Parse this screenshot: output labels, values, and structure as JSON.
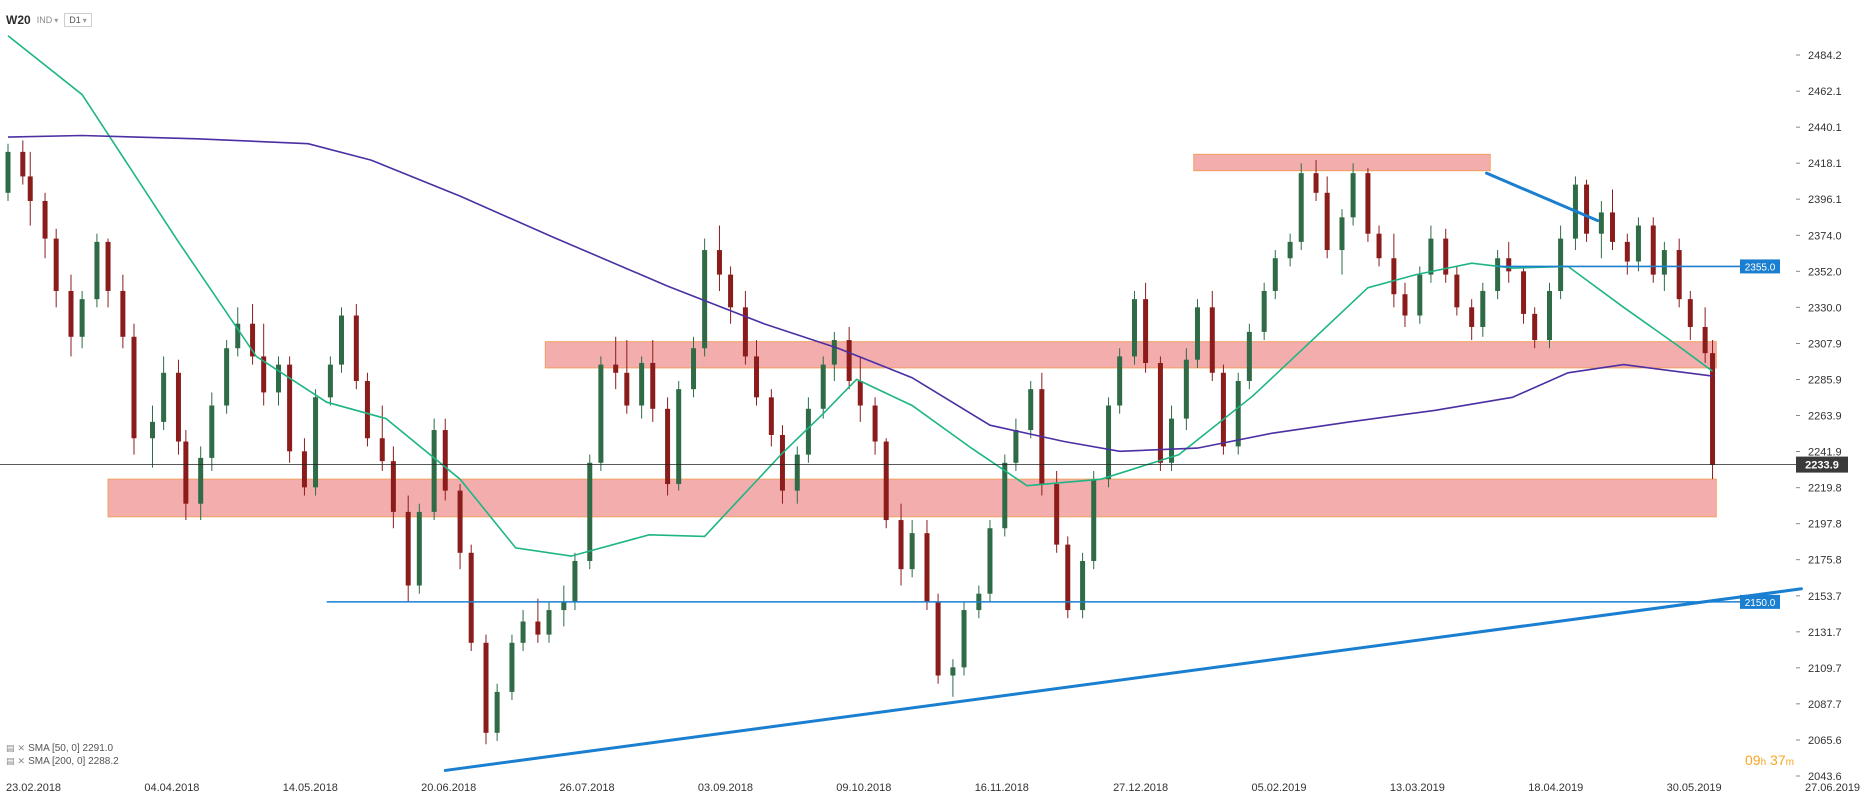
{
  "toolbar": {
    "symbol": "W20",
    "market": "IND",
    "timeframe": "D1"
  },
  "legend": [
    {
      "label": "SMA [50, 0] 2291.0"
    },
    {
      "label": "SMA [200, 0] 2288.2"
    }
  ],
  "timer": {
    "hours": "09",
    "h_unit": "h",
    "minutes": "37",
    "m_unit": "m"
  },
  "colors": {
    "bull": "#2e6b46",
    "bear": "#8b1c1c",
    "sma50": "#1db584",
    "sma200": "#4b2fa3",
    "trend": "#1a7fd0",
    "zone_fill": "#f08a8a",
    "zone_edge": "#f0a060",
    "price_line": "#222222"
  },
  "chart_data": {
    "type": "candlestick",
    "symbol": "W20",
    "timeframe": "D1",
    "x_axis_labels": [
      "23.02.2018",
      "04.04.2018",
      "14.05.2018",
      "20.06.2018",
      "26.07.2018",
      "03.09.2018",
      "09.10.2018",
      "16.11.2018",
      "27.12.2018",
      "05.02.2019",
      "13.03.2019",
      "18.04.2019",
      "30.05.2019",
      "27.06.2019"
    ],
    "x_range": [
      "2018-02-23",
      "2019-06-27"
    ],
    "y_axis_ticks": [
      "2484.2",
      "2462.1",
      "2440.1",
      "2418.1",
      "2396.1",
      "2374.0",
      "2352.0",
      "2330.0",
      "2307.9",
      "2285.9",
      "2263.9",
      "2241.9",
      "2219.8",
      "2197.8",
      "2175.8",
      "2153.7",
      "2131.7",
      "2109.7",
      "2087.7",
      "2065.6",
      "2043.6"
    ],
    "ylim": [
      2043.6,
      2484.2
    ],
    "current_price": "2233.9",
    "indicators": [
      {
        "name": "SMA [50, 0]",
        "last": 2291.0,
        "points": [
          [
            "2018-02-23",
            2496
          ],
          [
            "2018-03-15",
            2460
          ],
          [
            "2018-04-10",
            2370
          ],
          [
            "2018-05-01",
            2300
          ],
          [
            "2018-05-20",
            2272
          ],
          [
            "2018-06-05",
            2262
          ],
          [
            "2018-06-25",
            2225
          ],
          [
            "2018-07-10",
            2183
          ],
          [
            "2018-07-25",
            2178
          ],
          [
            "2018-08-15",
            2191
          ],
          [
            "2018-08-30",
            2190
          ],
          [
            "2018-09-20",
            2241
          ],
          [
            "2018-10-01",
            2265
          ],
          [
            "2018-10-10",
            2286
          ],
          [
            "2018-10-25",
            2270
          ],
          [
            "2018-11-10",
            2244
          ],
          [
            "2018-11-25",
            2221
          ],
          [
            "2018-12-15",
            2225
          ],
          [
            "2019-01-05",
            2240
          ],
          [
            "2019-01-25",
            2276
          ],
          [
            "2019-02-10",
            2310
          ],
          [
            "2019-02-25",
            2342
          ],
          [
            "2019-03-10",
            2350
          ],
          [
            "2019-03-25",
            2357
          ],
          [
            "2019-04-05",
            2354
          ],
          [
            "2019-04-20",
            2355
          ],
          [
            "2019-05-05",
            2330
          ],
          [
            "2019-05-20",
            2306
          ],
          [
            "2019-05-29",
            2291
          ]
        ]
      },
      {
        "name": "SMA [200, 0]",
        "last": 2288.2,
        "points": [
          [
            "2018-02-23",
            2434
          ],
          [
            "2018-03-15",
            2435
          ],
          [
            "2018-04-15",
            2433
          ],
          [
            "2018-05-15",
            2430
          ],
          [
            "2018-06-01",
            2420
          ],
          [
            "2018-06-25",
            2398
          ],
          [
            "2018-07-20",
            2373
          ],
          [
            "2018-08-20",
            2343
          ],
          [
            "2018-09-15",
            2320
          ],
          [
            "2018-10-05",
            2305
          ],
          [
            "2018-10-25",
            2287
          ],
          [
            "2018-11-15",
            2258
          ],
          [
            "2018-12-05",
            2248
          ],
          [
            "2018-12-20",
            2242
          ],
          [
            "2019-01-10",
            2244
          ],
          [
            "2019-01-30",
            2253
          ],
          [
            "2019-02-20",
            2260
          ],
          [
            "2019-03-15",
            2267
          ],
          [
            "2019-04-05",
            2275
          ],
          [
            "2019-04-20",
            2290
          ],
          [
            "2019-05-05",
            2295
          ],
          [
            "2019-05-29",
            2288
          ]
        ]
      }
    ],
    "zones": [
      {
        "from": "2019-01-09",
        "to": "2019-03-30",
        "low": 2413.5,
        "high": 2423.5
      },
      {
        "from": "2018-07-18",
        "to": "2019-05-30",
        "low": 2293.0,
        "high": 2309.0
      },
      {
        "from": "2018-03-22",
        "to": "2019-05-30",
        "low": 2202.0,
        "high": 2225.0
      }
    ],
    "lines": [
      {
        "kind": "horizontal",
        "from": "2018-05-20",
        "to": "2019-06-27",
        "price": 2150.0,
        "label": "2150.0"
      },
      {
        "kind": "horizontal",
        "from": "2019-04-01",
        "to": "2019-06-27",
        "price": 2355.0,
        "label": "2355.0"
      },
      {
        "kind": "trend",
        "from": [
          "2018-06-21",
          2047.0
        ],
        "to": [
          "2019-06-22",
          2158.0
        ]
      },
      {
        "kind": "trend",
        "from": [
          "2019-03-29",
          2412.0
        ],
        "to": [
          "2019-04-28",
          2383.0
        ]
      }
    ],
    "ohlc": [
      [
        "2018-02-23",
        2400,
        2430,
        2395,
        2425
      ],
      [
        "2018-02-27",
        2425,
        2432,
        2405,
        2410
      ],
      [
        "2018-03-01",
        2410,
        2425,
        2380,
        2395
      ],
      [
        "2018-03-05",
        2395,
        2400,
        2360,
        2372
      ],
      [
        "2018-03-08",
        2372,
        2378,
        2330,
        2340
      ],
      [
        "2018-03-12",
        2340,
        2350,
        2300,
        2312
      ],
      [
        "2018-03-15",
        2312,
        2340,
        2305,
        2335
      ],
      [
        "2018-03-19",
        2335,
        2375,
        2330,
        2370
      ],
      [
        "2018-03-22",
        2370,
        2372,
        2330,
        2340
      ],
      [
        "2018-03-26",
        2340,
        2350,
        2305,
        2312
      ],
      [
        "2018-03-29",
        2312,
        2320,
        2240,
        2250
      ],
      [
        "2018-04-03",
        2250,
        2270,
        2232,
        2260
      ],
      [
        "2018-04-06",
        2260,
        2300,
        2255,
        2290
      ],
      [
        "2018-04-10",
        2290,
        2298,
        2240,
        2248
      ],
      [
        "2018-04-12",
        2248,
        2255,
        2200,
        2210
      ],
      [
        "2018-04-16",
        2210,
        2245,
        2200,
        2238
      ],
      [
        "2018-04-19",
        2238,
        2278,
        2230,
        2270
      ],
      [
        "2018-04-23",
        2270,
        2310,
        2265,
        2305
      ],
      [
        "2018-04-26",
        2305,
        2330,
        2300,
        2320
      ],
      [
        "2018-04-30",
        2320,
        2332,
        2295,
        2300
      ],
      [
        "2018-05-03",
        2300,
        2320,
        2270,
        2278
      ],
      [
        "2018-05-07",
        2278,
        2300,
        2270,
        2295
      ],
      [
        "2018-05-10",
        2295,
        2300,
        2235,
        2242
      ],
      [
        "2018-05-14",
        2242,
        2250,
        2215,
        2220
      ],
      [
        "2018-05-17",
        2220,
        2280,
        2215,
        2275
      ],
      [
        "2018-05-21",
        2275,
        2300,
        2270,
        2295
      ],
      [
        "2018-05-24",
        2295,
        2330,
        2290,
        2325
      ],
      [
        "2018-05-28",
        2325,
        2332,
        2280,
        2285
      ],
      [
        "2018-05-31",
        2285,
        2290,
        2245,
        2250
      ],
      [
        "2018-06-04",
        2250,
        2270,
        2230,
        2236
      ],
      [
        "2018-06-07",
        2236,
        2245,
        2195,
        2205
      ],
      [
        "2018-06-11",
        2205,
        2215,
        2150,
        2160
      ],
      [
        "2018-06-14",
        2160,
        2210,
        2155,
        2205
      ],
      [
        "2018-06-18",
        2205,
        2262,
        2200,
        2255
      ],
      [
        "2018-06-21",
        2255,
        2262,
        2212,
        2218
      ],
      [
        "2018-06-25",
        2218,
        2222,
        2170,
        2180
      ],
      [
        "2018-06-28",
        2180,
        2185,
        2120,
        2125
      ],
      [
        "2018-07-02",
        2125,
        2130,
        2063,
        2070
      ],
      [
        "2018-07-05",
        2070,
        2100,
        2065,
        2095
      ],
      [
        "2018-07-09",
        2095,
        2130,
        2090,
        2125
      ],
      [
        "2018-07-12",
        2125,
        2145,
        2120,
        2138
      ],
      [
        "2018-07-16",
        2138,
        2152,
        2125,
        2130
      ],
      [
        "2018-07-19",
        2130,
        2150,
        2125,
        2145
      ],
      [
        "2018-07-23",
        2145,
        2160,
        2135,
        2150
      ],
      [
        "2018-07-26",
        2150,
        2180,
        2145,
        2175
      ],
      [
        "2018-07-30",
        2175,
        2240,
        2170,
        2235
      ],
      [
        "2018-08-02",
        2235,
        2300,
        2230,
        2295
      ],
      [
        "2018-08-06",
        2295,
        2312,
        2280,
        2290
      ],
      [
        "2018-08-09",
        2290,
        2310,
        2265,
        2270
      ],
      [
        "2018-08-13",
        2270,
        2300,
        2262,
        2296
      ],
      [
        "2018-08-16",
        2296,
        2310,
        2260,
        2268
      ],
      [
        "2018-08-20",
        2268,
        2275,
        2215,
        2222
      ],
      [
        "2018-08-23",
        2222,
        2285,
        2218,
        2280
      ],
      [
        "2018-08-27",
        2280,
        2312,
        2275,
        2305
      ],
      [
        "2018-08-30",
        2305,
        2372,
        2300,
        2365
      ],
      [
        "2018-09-03",
        2365,
        2380,
        2340,
        2350
      ],
      [
        "2018-09-06",
        2350,
        2355,
        2320,
        2330
      ],
      [
        "2018-09-10",
        2330,
        2340,
        2295,
        2300
      ],
      [
        "2018-09-13",
        2300,
        2310,
        2270,
        2275
      ],
      [
        "2018-09-17",
        2275,
        2280,
        2245,
        2252
      ],
      [
        "2018-09-20",
        2252,
        2258,
        2210,
        2218
      ],
      [
        "2018-09-24",
        2218,
        2245,
        2210,
        2240
      ],
      [
        "2018-09-27",
        2240,
        2275,
        2235,
        2268
      ],
      [
        "2018-10-01",
        2268,
        2300,
        2262,
        2295
      ],
      [
        "2018-10-04",
        2295,
        2315,
        2285,
        2310
      ],
      [
        "2018-10-08",
        2310,
        2318,
        2280,
        2285
      ],
      [
        "2018-10-11",
        2285,
        2300,
        2260,
        2270
      ],
      [
        "2018-10-15",
        2270,
        2275,
        2240,
        2248
      ],
      [
        "2018-10-18",
        2248,
        2250,
        2195,
        2200
      ],
      [
        "2018-10-22",
        2200,
        2210,
        2160,
        2170
      ],
      [
        "2018-10-25",
        2170,
        2200,
        2165,
        2192
      ],
      [
        "2018-10-29",
        2192,
        2200,
        2145,
        2150
      ],
      [
        "2018-11-01",
        2150,
        2155,
        2100,
        2105
      ],
      [
        "2018-11-05",
        2105,
        2115,
        2092,
        2110
      ],
      [
        "2018-11-08",
        2110,
        2150,
        2105,
        2145
      ],
      [
        "2018-11-12",
        2145,
        2160,
        2140,
        2155
      ],
      [
        "2018-11-15",
        2155,
        2200,
        2150,
        2195
      ],
      [
        "2018-11-19",
        2195,
        2240,
        2190,
        2235
      ],
      [
        "2018-11-22",
        2235,
        2262,
        2230,
        2255
      ],
      [
        "2018-11-26",
        2255,
        2285,
        2250,
        2280
      ],
      [
        "2018-11-29",
        2280,
        2290,
        2215,
        2222
      ],
      [
        "2018-12-03",
        2222,
        2230,
        2180,
        2185
      ],
      [
        "2018-12-06",
        2185,
        2190,
        2140,
        2145
      ],
      [
        "2018-12-10",
        2145,
        2180,
        2140,
        2175
      ],
      [
        "2018-12-13",
        2175,
        2230,
        2170,
        2225
      ],
      [
        "2018-12-17",
        2225,
        2275,
        2220,
        2270
      ],
      [
        "2018-12-20",
        2270,
        2305,
        2265,
        2300
      ],
      [
        "2018-12-24",
        2300,
        2340,
        2295,
        2335
      ],
      [
        "2018-12-27",
        2335,
        2345,
        2290,
        2296
      ],
      [
        "2018-12-31",
        2296,
        2300,
        2230,
        2235
      ],
      [
        "2019-01-03",
        2235,
        2270,
        2230,
        2262
      ],
      [
        "2019-01-07",
        2262,
        2305,
        2255,
        2298
      ],
      [
        "2019-01-10",
        2298,
        2335,
        2293,
        2330
      ],
      [
        "2019-01-14",
        2330,
        2340,
        2285,
        2290
      ],
      [
        "2019-01-17",
        2290,
        2295,
        2240,
        2245
      ],
      [
        "2019-01-21",
        2245,
        2290,
        2240,
        2285
      ],
      [
        "2019-01-24",
        2285,
        2320,
        2280,
        2315
      ],
      [
        "2019-01-28",
        2315,
        2345,
        2310,
        2340
      ],
      [
        "2019-01-31",
        2340,
        2365,
        2335,
        2360
      ],
      [
        "2019-02-04",
        2360,
        2375,
        2355,
        2370
      ],
      [
        "2019-02-07",
        2370,
        2418,
        2365,
        2412
      ],
      [
        "2019-02-11",
        2412,
        2420,
        2395,
        2400
      ],
      [
        "2019-02-14",
        2400,
        2410,
        2360,
        2365
      ],
      [
        "2019-02-18",
        2365,
        2390,
        2350,
        2385
      ],
      [
        "2019-02-21",
        2385,
        2418,
        2380,
        2412
      ],
      [
        "2019-02-25",
        2412,
        2415,
        2370,
        2375
      ],
      [
        "2019-02-28",
        2375,
        2380,
        2355,
        2360
      ],
      [
        "2019-03-04",
        2360,
        2375,
        2330,
        2338
      ],
      [
        "2019-03-07",
        2338,
        2345,
        2318,
        2325
      ],
      [
        "2019-03-11",
        2325,
        2355,
        2320,
        2350
      ],
      [
        "2019-03-14",
        2350,
        2380,
        2345,
        2372
      ],
      [
        "2019-03-18",
        2372,
        2378,
        2345,
        2350
      ],
      [
        "2019-03-21",
        2350,
        2355,
        2325,
        2330
      ],
      [
        "2019-03-25",
        2330,
        2335,
        2310,
        2318
      ],
      [
        "2019-03-28",
        2318,
        2345,
        2312,
        2340
      ],
      [
        "2019-04-01",
        2340,
        2365,
        2335,
        2360
      ],
      [
        "2019-04-04",
        2360,
        2370,
        2345,
        2352
      ],
      [
        "2019-04-08",
        2352,
        2355,
        2320,
        2326
      ],
      [
        "2019-04-11",
        2326,
        2330,
        2305,
        2310
      ],
      [
        "2019-04-15",
        2310,
        2345,
        2305,
        2340
      ],
      [
        "2019-04-18",
        2340,
        2380,
        2335,
        2372
      ],
      [
        "2019-04-22",
        2372,
        2410,
        2365,
        2405
      ],
      [
        "2019-04-25",
        2405,
        2408,
        2370,
        2375
      ],
      [
        "2019-04-29",
        2375,
        2395,
        2360,
        2388
      ],
      [
        "2019-05-02",
        2388,
        2402,
        2365,
        2370
      ],
      [
        "2019-05-06",
        2370,
        2375,
        2350,
        2358
      ],
      [
        "2019-05-09",
        2358,
        2385,
        2352,
        2380
      ],
      [
        "2019-05-13",
        2380,
        2385,
        2345,
        2350
      ],
      [
        "2019-05-16",
        2350,
        2370,
        2340,
        2365
      ],
      [
        "2019-05-20",
        2365,
        2372,
        2330,
        2335
      ],
      [
        "2019-05-23",
        2335,
        2340,
        2310,
        2318
      ],
      [
        "2019-05-27",
        2318,
        2330,
        2296,
        2302
      ],
      [
        "2019-05-29",
        2302,
        2310,
        2225,
        2233.9
      ]
    ]
  }
}
